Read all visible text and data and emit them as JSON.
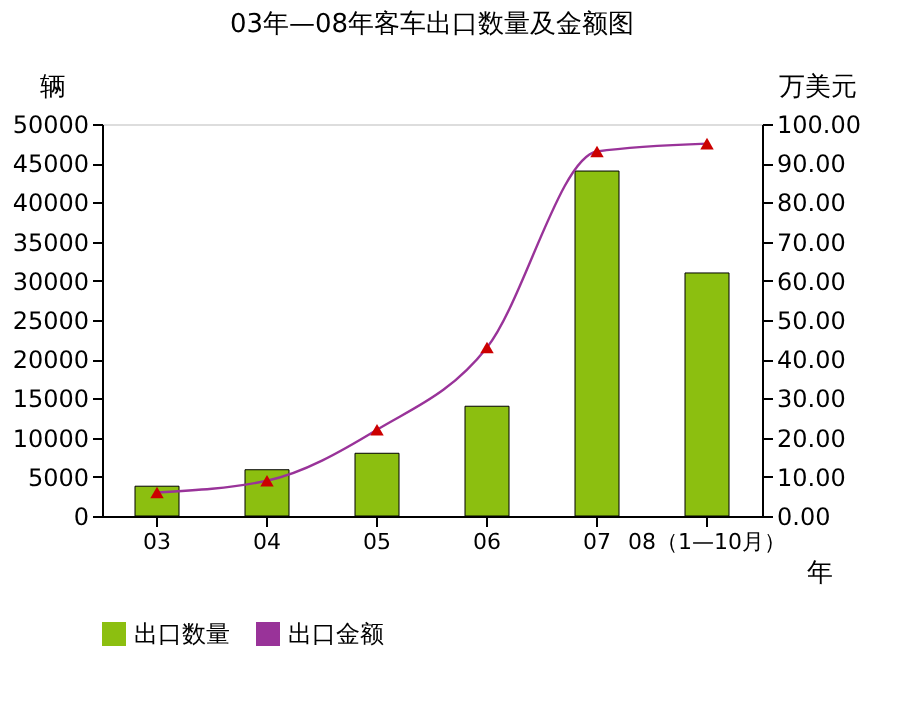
{
  "chart_data": {
    "type": "bar",
    "title": "03年—08年客车出口数量及金额图",
    "xlabel": "年",
    "ylabel": "辆",
    "y2label": "万美元",
    "categories": [
      "03",
      "04",
      "05",
      "06",
      "07",
      "08（1—10月）"
    ],
    "series": [
      {
        "name": "出口数量",
        "color": "#8cbf10",
        "values": [
          3800,
          5900,
          8000,
          14000,
          44000,
          31000
        ]
      },
      {
        "name": "出口金额",
        "type": "line",
        "axis": "y2",
        "color": "#993399",
        "colors": [
          "#cc0000",
          "#cc0000",
          "#cc0000",
          "#cc0000",
          "#cc0000",
          "#cc0000"
        ],
        "marker": "triangle",
        "values": [
          6,
          9,
          22,
          43,
          93,
          95
        ]
      }
    ],
    "ylim": [
      0,
      50000
    ],
    "yticks": [
      0,
      5000,
      10000,
      15000,
      20000,
      25000,
      30000,
      35000,
      40000,
      45000,
      50000
    ],
    "y2lim": [
      0,
      100
    ],
    "y2ticks": [
      {
        "value": 0,
        "label": "0.00"
      },
      {
        "value": 10,
        "label": "10.00"
      },
      {
        "value": 20,
        "label": "20.00"
      },
      {
        "value": 30,
        "label": "30.00"
      },
      {
        "value": 40,
        "label": "40.00"
      },
      {
        "value": 50,
        "label": "50.00"
      },
      {
        "value": 60,
        "label": "60.00"
      },
      {
        "value": 70,
        "label": "70.00"
      },
      {
        "value": 80,
        "label": "80.00"
      },
      {
        "value": 90,
        "label": "90.00"
      },
      {
        "value": 100,
        "label": "100.00"
      }
    ],
    "grid": false,
    "legend": "bottom"
  }
}
